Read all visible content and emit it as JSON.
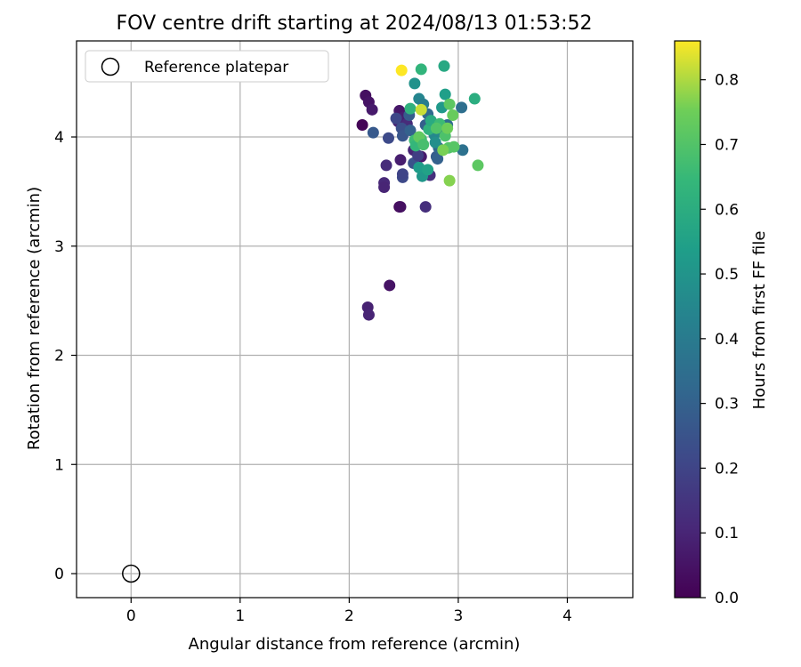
{
  "chart_data": {
    "type": "scatter",
    "title": "FOV centre drift starting at 2024/08/13 01:53:52",
    "xlabel": "Angular distance from reference (arcmin)",
    "ylabel": "Rotation from reference (arcmin)",
    "xlim": [
      -0.5,
      4.6
    ],
    "ylim": [
      -0.22,
      4.88
    ],
    "xticks": [
      0,
      1,
      2,
      3,
      4
    ],
    "yticks": [
      0,
      1,
      2,
      3,
      4
    ],
    "grid": true,
    "legend": {
      "position": "top-left",
      "entries": [
        "Reference platepar"
      ]
    },
    "colorbar": {
      "label": "Hours from first FF file",
      "range": [
        0.0,
        0.86
      ],
      "ticks": [
        "0.0",
        "0.1",
        "0.2",
        "0.3",
        "0.4",
        "0.5",
        "0.6",
        "0.7",
        "0.8"
      ],
      "colormap": "viridis"
    },
    "reference_point": {
      "name": "Reference platepar",
      "x": 0,
      "y": 0
    },
    "points": [
      [
        2.12,
        4.11,
        0.01
      ],
      [
        2.15,
        4.38,
        0.04
      ],
      [
        2.18,
        4.32,
        0.05
      ],
      [
        2.21,
        4.25,
        0.07
      ],
      [
        2.17,
        2.44,
        0.09
      ],
      [
        2.18,
        2.37,
        0.1
      ],
      [
        2.37,
        2.64,
        0.05
      ],
      [
        2.32,
        3.58,
        0.11
      ],
      [
        2.32,
        3.54,
        0.1
      ],
      [
        2.34,
        3.74,
        0.12
      ],
      [
        2.46,
        3.36,
        0.02
      ],
      [
        2.47,
        3.36,
        0.04
      ],
      [
        2.47,
        3.79,
        0.08
      ],
      [
        2.46,
        4.24,
        0.06
      ],
      [
        2.45,
        4.14,
        0.09
      ],
      [
        2.5,
        4.18,
        0.08
      ],
      [
        2.53,
        4.12,
        0.12
      ],
      [
        2.59,
        3.88,
        0.1
      ],
      [
        2.66,
        3.82,
        0.07
      ],
      [
        2.68,
        3.66,
        0.11
      ],
      [
        2.74,
        3.65,
        0.13
      ],
      [
        2.7,
        3.36,
        0.13
      ],
      [
        2.49,
        3.63,
        0.22
      ],
      [
        2.49,
        3.66,
        0.2
      ],
      [
        2.36,
        3.99,
        0.22
      ],
      [
        2.22,
        4.04,
        0.27
      ],
      [
        2.43,
        4.17,
        0.21
      ],
      [
        2.48,
        4.08,
        0.24
      ],
      [
        2.49,
        4.01,
        0.26
      ],
      [
        2.55,
        4.2,
        0.28
      ],
      [
        2.56,
        4.06,
        0.3
      ],
      [
        2.59,
        3.76,
        0.25
      ],
      [
        2.63,
        3.83,
        0.18
      ],
      [
        2.7,
        4.11,
        0.29
      ],
      [
        2.72,
        4.21,
        0.33
      ],
      [
        2.8,
        3.82,
        0.28
      ],
      [
        2.82,
        3.9,
        0.32
      ],
      [
        2.86,
        4.06,
        0.31
      ],
      [
        2.9,
        4.11,
        0.34
      ],
      [
        3.04,
        3.88,
        0.36
      ],
      [
        3.03,
        4.27,
        0.35
      ],
      [
        2.64,
        4.35,
        0.44
      ],
      [
        2.68,
        4.3,
        0.41
      ],
      [
        2.78,
        4.02,
        0.45
      ],
      [
        2.81,
        3.8,
        0.3
      ],
      [
        2.6,
        4.49,
        0.49
      ],
      [
        2.67,
        3.64,
        0.51
      ],
      [
        2.64,
        3.72,
        0.53
      ],
      [
        2.72,
        3.7,
        0.55
      ],
      [
        2.79,
        3.95,
        0.48
      ],
      [
        2.85,
        4.27,
        0.52
      ],
      [
        2.88,
        4.39,
        0.54
      ],
      [
        2.87,
        4.65,
        0.58
      ],
      [
        2.66,
        4.62,
        0.63
      ],
      [
        2.56,
        4.26,
        0.62
      ],
      [
        3.15,
        4.35,
        0.6
      ],
      [
        2.6,
        3.97,
        0.66
      ],
      [
        2.61,
        3.92,
        0.64
      ],
      [
        2.66,
        3.98,
        0.67
      ],
      [
        2.73,
        4.07,
        0.62
      ],
      [
        2.75,
        4.15,
        0.59
      ],
      [
        2.83,
        4.12,
        0.66
      ],
      [
        2.88,
        4.01,
        0.69
      ],
      [
        2.91,
        3.9,
        0.7
      ],
      [
        2.92,
        4.3,
        0.72
      ],
      [
        2.95,
        4.2,
        0.74
      ],
      [
        2.96,
        3.91,
        0.71
      ],
      [
        2.64,
        4.0,
        0.73
      ],
      [
        2.68,
        3.93,
        0.68
      ],
      [
        2.8,
        4.08,
        0.7
      ],
      [
        2.86,
        3.88,
        0.76
      ],
      [
        2.9,
        4.08,
        0.75
      ],
      [
        2.92,
        3.6,
        0.77
      ],
      [
        3.18,
        3.74,
        0.72
      ],
      [
        2.66,
        4.25,
        0.82
      ],
      [
        2.48,
        4.61,
        0.86
      ]
    ]
  }
}
